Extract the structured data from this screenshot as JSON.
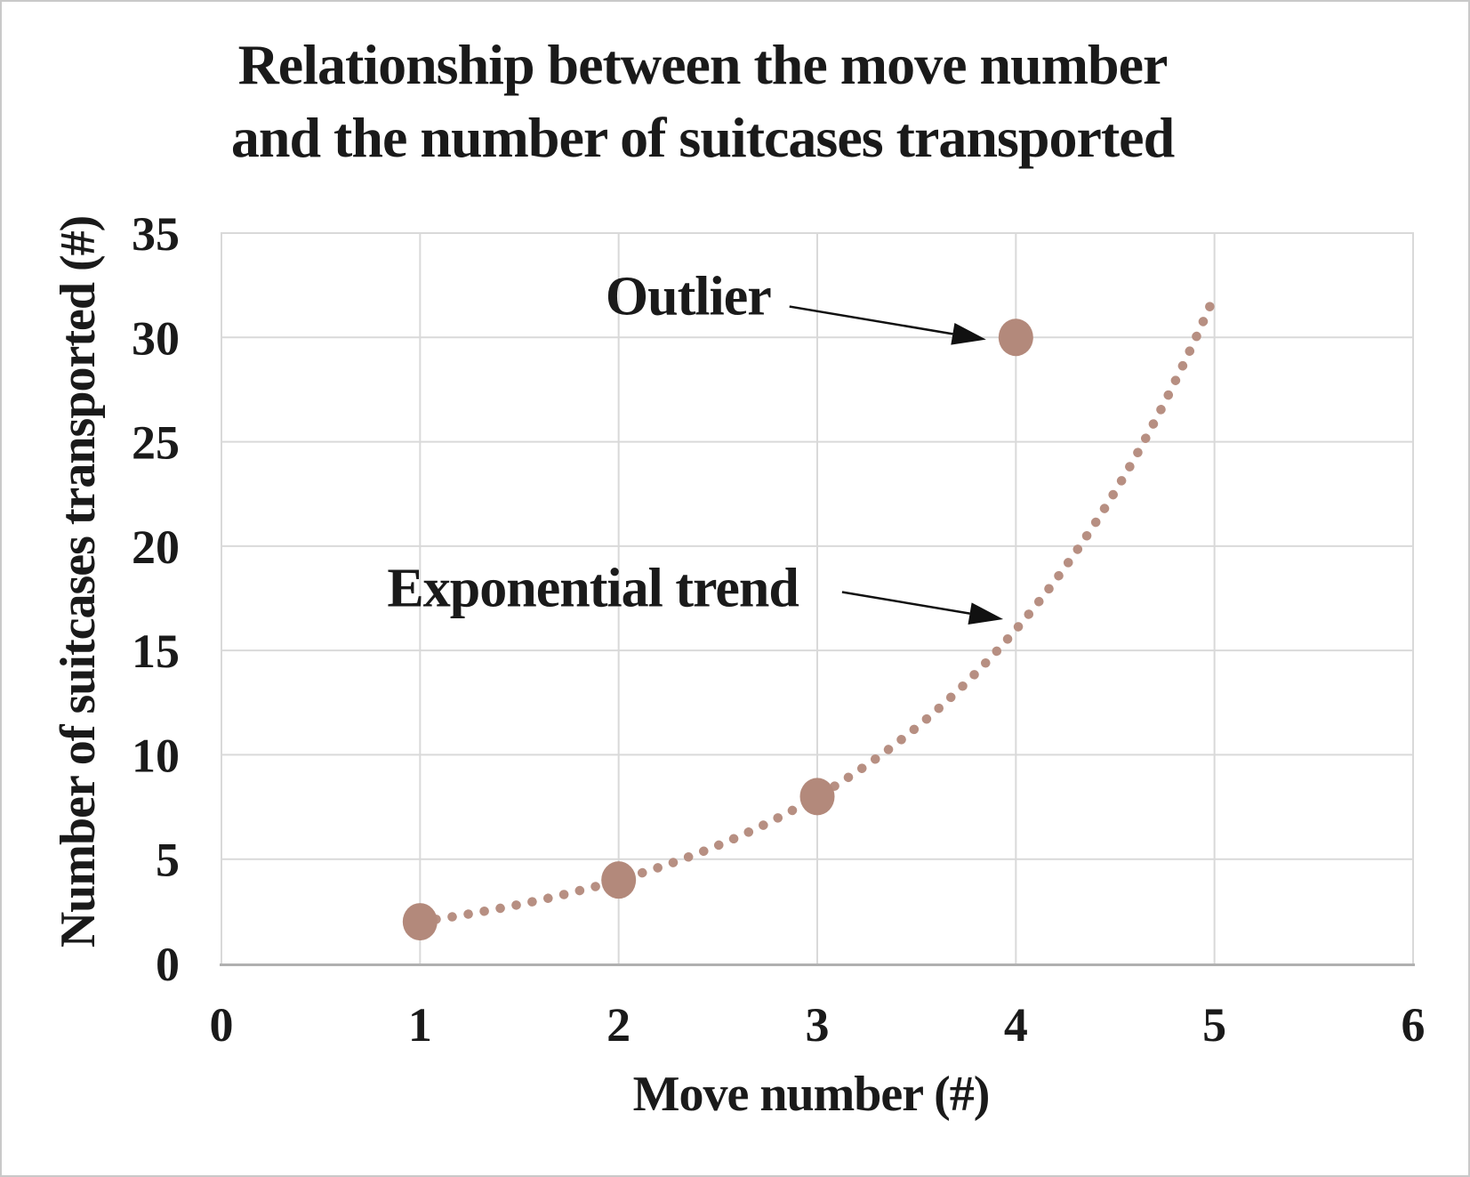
{
  "title": {
    "line1": "Relationship between the move number",
    "line2": "and the number of suitcases transported"
  },
  "chart_data": {
    "type": "scatter",
    "title": "Relationship between the move number and the number of suitcases transported",
    "xlabel": "Move number (#)",
    "ylabel": "Number of suitcases transported (#)",
    "xlim": [
      0,
      6
    ],
    "ylim": [
      0,
      35
    ],
    "xticks": [
      0,
      1,
      2,
      3,
      4,
      5,
      6
    ],
    "yticks": [
      0,
      5,
      10,
      15,
      20,
      25,
      30,
      35
    ],
    "grid": true,
    "legend": false,
    "points": [
      {
        "x": 1,
        "y": 2
      },
      {
        "x": 2,
        "y": 4
      },
      {
        "x": 3,
        "y": 8
      },
      {
        "x": 4,
        "y": 30,
        "note": "Outlier"
      }
    ],
    "trend": {
      "type": "exponential",
      "formula": "y = 2^x",
      "base": 2,
      "coefficient": 1,
      "x_range": [
        1.0,
        4.98
      ],
      "style": "dotted"
    },
    "annotations": [
      {
        "text": "Outlier",
        "label_at": {
          "x": 2.35,
          "y": 31.95
        },
        "arrow_from": {
          "x": 2.86,
          "y": 31.48
        },
        "arrow_to": {
          "x": 3.85,
          "y": 29.9
        }
      },
      {
        "text": "Exponential trend",
        "label_at": {
          "x": 1.87,
          "y": 17.95
        },
        "arrow_from": {
          "x": 3.125,
          "y": 17.8
        },
        "arrow_to": {
          "x": 3.936,
          "y": 16.5
        }
      }
    ],
    "colors": {
      "marker": "#b3897b",
      "trend": "#b78f82",
      "grid": "#d9d9d9",
      "axis_line": "#b0b0b0",
      "text": "#1a1a1a",
      "arrow": "#111111",
      "frame_border": "#c9c9c9"
    }
  }
}
